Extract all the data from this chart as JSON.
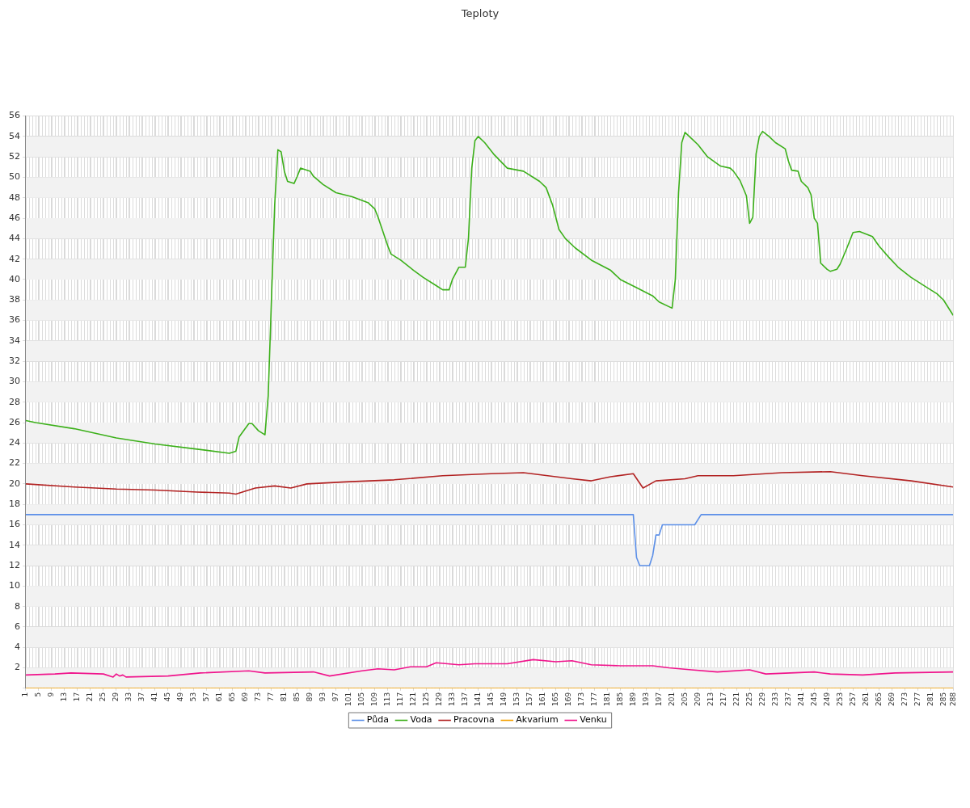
{
  "chart_data": {
    "type": "line",
    "title": "Teploty",
    "xlim": [
      1,
      288
    ],
    "xticks": [
      1,
      5,
      9,
      13,
      17,
      21,
      25,
      29,
      33,
      37,
      41,
      45,
      49,
      53,
      57,
      61,
      65,
      69,
      73,
      77,
      81,
      85,
      89,
      93,
      97,
      101,
      105,
      109,
      113,
      117,
      121,
      125,
      129,
      133,
      137,
      141,
      145,
      149,
      153,
      157,
      161,
      165,
      169,
      173,
      177,
      181,
      185,
      189,
      193,
      197,
      201,
      205,
      209,
      213,
      217,
      221,
      225,
      229,
      233,
      237,
      241,
      245,
      249,
      253,
      257,
      261,
      265,
      269,
      273,
      277,
      281,
      285,
      288
    ],
    "ylim": [
      0,
      56
    ],
    "yticks": [
      {
        "value": 0,
        "label": null
      },
      2,
      4,
      6,
      8,
      10,
      12,
      14,
      16,
      18,
      20,
      22,
      24,
      26,
      28,
      30,
      32,
      34,
      36,
      38,
      40,
      42,
      44,
      46,
      48,
      50,
      52,
      54,
      56
    ],
    "grid": true,
    "legend": "bottom",
    "marker": "none",
    "line_style": "solid",
    "series": [
      {
        "name": "Půda",
        "color": "#5b8fe8",
        "x": [
          1,
          189,
          190,
          191,
          194,
          195,
          196,
          197,
          198,
          208,
          210,
          288
        ],
        "values": [
          17,
          17,
          12.8,
          12,
          12,
          13,
          15,
          15,
          16,
          16,
          17,
          17
        ]
      },
      {
        "name": "Voda",
        "color": "#3cb01a",
        "x": [
          1,
          4,
          16,
          29,
          41,
          54,
          64,
          66,
          67,
          70,
          71,
          73,
          75,
          76,
          78,
          79,
          80,
          81,
          82,
          84,
          85,
          86,
          89,
          90,
          93,
          97,
          102,
          107,
          109,
          110,
          113,
          114,
          117,
          121,
          124,
          128,
          130,
          132,
          133,
          135,
          137,
          138,
          139,
          140,
          141,
          143,
          146,
          150,
          155,
          160,
          162,
          164,
          166,
          168,
          171,
          176,
          182,
          185,
          190,
          195,
          197,
          201,
          202,
          203,
          204,
          205,
          207,
          209,
          212,
          216,
          219,
          220,
          222,
          224,
          225,
          226,
          227,
          228,
          229,
          231,
          233,
          236,
          237,
          238,
          240,
          241,
          243,
          244,
          245,
          246,
          247,
          249,
          250,
          252,
          253,
          255,
          257,
          259,
          263,
          265,
          268,
          271,
          275,
          280,
          283,
          285,
          288
        ],
        "values": [
          26.2,
          26,
          25.4,
          24.5,
          23.9,
          23.4,
          23,
          23.2,
          24.6,
          25.9,
          25.9,
          25.2,
          24.8,
          28.6,
          47.3,
          52.7,
          52.5,
          50.6,
          49.6,
          49.4,
          50.1,
          50.9,
          50.6,
          50.1,
          49.3,
          48.5,
          48.1,
          47.5,
          46.9,
          46.1,
          43.3,
          42.5,
          41.9,
          40.9,
          40.2,
          39.4,
          39,
          39,
          40,
          41.2,
          41.2,
          44.1,
          50.9,
          53.6,
          54,
          53.4,
          52.2,
          50.9,
          50.6,
          49.6,
          49,
          47.3,
          44.9,
          44,
          43.1,
          41.9,
          40.9,
          40,
          39.2,
          38.4,
          37.8,
          37.2,
          40,
          48.5,
          53.4,
          54.4,
          53.8,
          53.2,
          52,
          51.1,
          50.9,
          50.6,
          49.7,
          48.2,
          45.5,
          46.1,
          52.3,
          54,
          54.5,
          54,
          53.4,
          52.8,
          51.6,
          50.7,
          50.6,
          49.6,
          49,
          48.3,
          46,
          45.5,
          41.6,
          41,
          40.8,
          41,
          41.5,
          43,
          44.6,
          44.7,
          44.2,
          43.3,
          42.2,
          41.2,
          40.2,
          39.2,
          38.6,
          38,
          36.5
        ]
      },
      {
        "name": "Pracovna",
        "color": "#b22222",
        "x": [
          1,
          16,
          29,
          41,
          54,
          64,
          66,
          72,
          78,
          83,
          88,
          100,
          115,
          130,
          145,
          155,
          170,
          176,
          182,
          189,
          192,
          196,
          205,
          209,
          220,
          235,
          250,
          260,
          275,
          288
        ],
        "values": [
          20,
          19.7,
          19.5,
          19.4,
          19.2,
          19.1,
          19,
          19.6,
          19.8,
          19.6,
          20,
          20.2,
          20.4,
          20.8,
          21,
          21.1,
          20.5,
          20.3,
          20.7,
          21,
          19.6,
          20.3,
          20.5,
          20.8,
          20.8,
          21.1,
          21.2,
          20.8,
          20.3,
          19.7
        ]
      },
      {
        "name": "Akvarium",
        "color": "#f5a000",
        "x": [
          1,
          288
        ],
        "values": [
          0,
          0
        ]
      },
      {
        "name": "Venku",
        "color": "#f0148c",
        "x": [
          1,
          10,
          15,
          25,
          28,
          29,
          30,
          31,
          32,
          45,
          55,
          70,
          75,
          90,
          95,
          105,
          110,
          115,
          120,
          125,
          128,
          135,
          140,
          150,
          158,
          165,
          170,
          176,
          185,
          195,
          200,
          207,
          215,
          225,
          230,
          245,
          250,
          260,
          270,
          288
        ],
        "values": [
          1.3,
          1.4,
          1.5,
          1.4,
          1.1,
          1.4,
          1.2,
          1.3,
          1.1,
          1.2,
          1.5,
          1.7,
          1.5,
          1.6,
          1.2,
          1.7,
          1.9,
          1.8,
          2.1,
          2.1,
          2.5,
          2.3,
          2.4,
          2.4,
          2.8,
          2.6,
          2.7,
          2.3,
          2.2,
          2.2,
          2,
          1.8,
          1.6,
          1.8,
          1.4,
          1.6,
          1.4,
          1.3,
          1.5,
          1.6
        ]
      }
    ]
  }
}
